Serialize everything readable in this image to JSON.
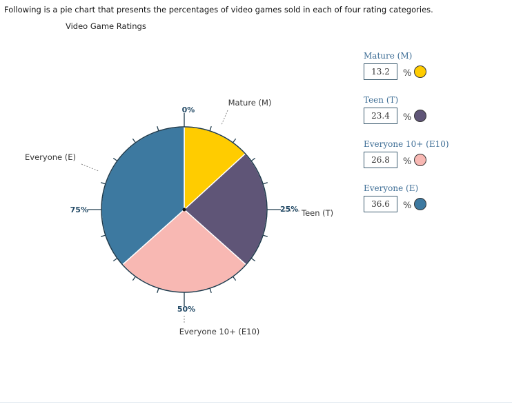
{
  "intro_text": "Following is a pie chart that presents the percentages of video games sold in each of four rating categories.",
  "chart_data": {
    "type": "pie",
    "title": "Video Game Ratings",
    "categories": [
      "Mature (M)",
      "Teen (T)",
      "Everyone 10+ (E10)",
      "Everyone (E)"
    ],
    "values": [
      13.2,
      23.4,
      26.8,
      36.6
    ],
    "unit": "%",
    "colors": [
      "#ffcc00",
      "#5f5577",
      "#f8b8b3",
      "#3d79a0"
    ],
    "percent_labels": [
      "0%",
      "25%",
      "50%",
      "75%"
    ]
  },
  "editor": {
    "unit_symbol": "%",
    "items": [
      {
        "label": "Mature (M)",
        "value": "13.2",
        "color": "#ffcc00"
      },
      {
        "label": "Teen (T)",
        "value": "23.4",
        "color": "#5f5577"
      },
      {
        "label": "Everyone 10+ (E10)",
        "value": "26.8",
        "color": "#f8b8b3"
      },
      {
        "label": "Everyone (E)",
        "value": "36.6",
        "color": "#3d79a0"
      }
    ]
  }
}
